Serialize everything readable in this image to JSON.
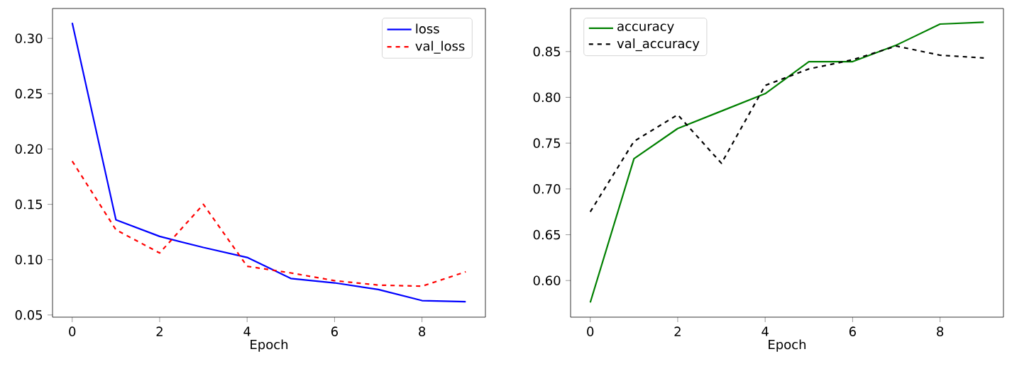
{
  "chart_data": [
    {
      "type": "line",
      "xlabel": "Epoch",
      "x": [
        0,
        1,
        2,
        3,
        4,
        5,
        6,
        7,
        8,
        9
      ],
      "xlim": [
        -0.45,
        9.45
      ],
      "xticks": [
        0,
        2,
        4,
        6,
        8
      ],
      "ylim": [
        0.048,
        0.327
      ],
      "yticks": [
        {
          "value": 0.05,
          "label": "0.05"
        },
        {
          "value": 0.1,
          "label": "0.10"
        },
        {
          "value": 0.15,
          "label": "0.15"
        },
        {
          "value": 0.2,
          "label": "0.20"
        },
        {
          "value": 0.25,
          "label": "0.25"
        },
        {
          "value": 0.3,
          "label": "0.30"
        }
      ],
      "legend": "top right",
      "marker": "none",
      "series": [
        {
          "name": "loss",
          "color": "#0000ff",
          "line_style": "solid",
          "values": [
            0.314,
            0.136,
            0.121,
            0.111,
            0.102,
            0.083,
            0.079,
            0.073,
            0.063,
            0.062
          ]
        },
        {
          "name": "val_loss",
          "color": "#ff0000",
          "line_style": "dashed",
          "values": [
            0.189,
            0.127,
            0.106,
            0.15,
            0.094,
            0.088,
            0.081,
            0.077,
            0.076,
            0.089
          ]
        }
      ]
    },
    {
      "type": "line",
      "xlabel": "Epoch",
      "x": [
        0,
        1,
        2,
        3,
        4,
        5,
        6,
        7,
        8,
        9
      ],
      "xlim": [
        -0.45,
        9.45
      ],
      "xticks": [
        0,
        2,
        4,
        6,
        8
      ],
      "ylim": [
        0.56,
        0.897
      ],
      "yticks": [
        {
          "value": 0.6,
          "label": "0.60"
        },
        {
          "value": 0.65,
          "label": "0.65"
        },
        {
          "value": 0.7,
          "label": "0.70"
        },
        {
          "value": 0.75,
          "label": "0.75"
        },
        {
          "value": 0.8,
          "label": "0.80"
        },
        {
          "value": 0.85,
          "label": "0.85"
        }
      ],
      "legend": "top left",
      "marker": "none",
      "series": [
        {
          "name": "accuracy",
          "color": "#008000",
          "line_style": "solid",
          "values": [
            0.576,
            0.733,
            0.766,
            0.785,
            0.804,
            0.839,
            0.839,
            0.857,
            0.88,
            0.882
          ]
        },
        {
          "name": "val_accuracy",
          "color": "#000000",
          "line_style": "dashed",
          "values": [
            0.675,
            0.752,
            0.781,
            0.728,
            0.813,
            0.831,
            0.841,
            0.856,
            0.846,
            0.843
          ]
        }
      ]
    }
  ]
}
